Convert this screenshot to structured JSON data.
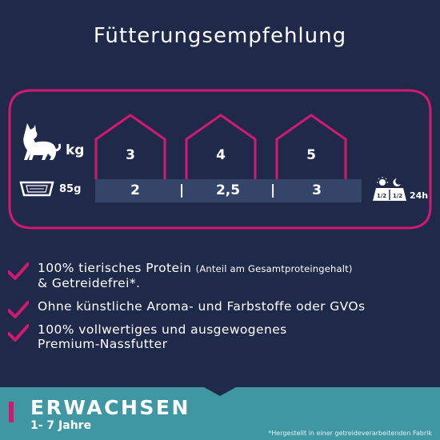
{
  "title": "Fütterungsempfehlung",
  "feeding": {
    "kg_label": "kg",
    "grams_label": "85g",
    "weights": [
      "3",
      "4",
      "5"
    ],
    "portions": [
      "2",
      "2,5",
      "3"
    ],
    "separators": [
      "|",
      "|"
    ],
    "split_top": "1/2",
    "split_bottom": "1/2",
    "hours_label": "24h"
  },
  "features": [
    {
      "main": "100% tierisches Protein",
      "note": "(Anteil am Gesamtproteingehalt)",
      "line2": "& Getreidefrei*."
    },
    {
      "main": "Ohne künstliche Aroma- und Farbstoffe oder GVOs"
    },
    {
      "main": "100% vollwertiges und ausgewogenes",
      "line2": "Premium-Nassfutter"
    }
  ],
  "banner": {
    "title": "ERWACHSEN",
    "subtitle": "1- 7 Jahre",
    "footnote": "*Hergestellt in einer getreideverarbeitenden Fabrik"
  },
  "colors": {
    "background": "#1f2a4a",
    "accent": "#d41872",
    "banner": "#3e97a2",
    "portion_bar": "#35456a"
  },
  "icons": [
    "cat-icon",
    "tray-icon",
    "sun-moon-icon",
    "checkmark-icon"
  ]
}
